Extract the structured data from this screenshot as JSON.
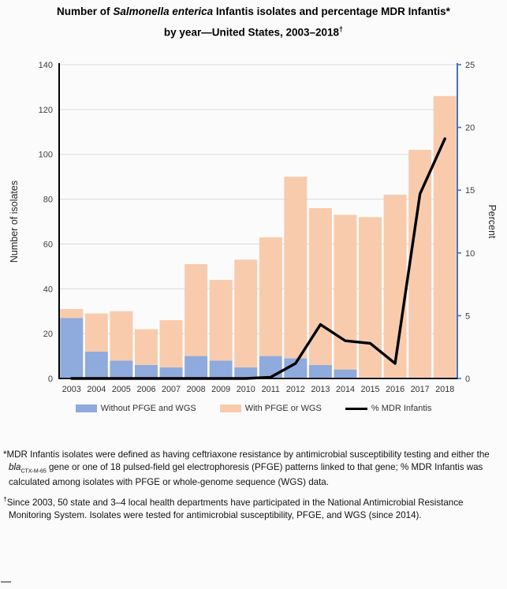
{
  "title": {
    "line1_prefix": "Number of ",
    "line1_italic": "Salmonella enterica",
    "line1_suffix": " Infantis isolates and percentage MDR Infantis*",
    "line2_text": "by year—United States, 2003–2018",
    "line2_sup": "†"
  },
  "legend": [
    {
      "label": "Without PFGE and WGS",
      "color": "#8faadc",
      "type": "swatch"
    },
    {
      "label": "With PFGE or WGS",
      "color": "#f8cbad",
      "type": "swatch"
    },
    {
      "label": "% MDR Infantis",
      "color": "#000000",
      "type": "line"
    }
  ],
  "footnotes": {
    "fn1": {
      "part1": "*MDR Infantis isolates were defined as having ceftriaxone resistance by antimicrobial susceptibility testing and either the ",
      "gene_italic": "bla",
      "gene_sub": "CTX-M-65",
      "part2": " gene or one of 18 pulsed-field gel electrophoresis (PFGE) patterns linked to that gene; % MDR Infantis was calculated among isolates with PFGE or whole-genome sequence (WGS) data."
    },
    "fn2": {
      "marker": "†",
      "text": "Since 2003, 50 state and 3–4 local health departments have participated in the National Antimicrobial Resistance Monitoring System. Isolates were tested for antimicrobial susceptibility, PFGE, and WGS (since 2014)."
    }
  },
  "chart_data": {
    "type": "bar",
    "stacked": true,
    "overlay_line": true,
    "categories": [
      "2003",
      "2004",
      "2005",
      "2006",
      "2007",
      "2008",
      "2009",
      "2010",
      "2011",
      "2012",
      "2013",
      "2014",
      "2015",
      "2016",
      "2017",
      "2018"
    ],
    "series": [
      {
        "name": "Without PFGE and WGS",
        "kind": "bar",
        "color": "#8faadc",
        "values": [
          27,
          12,
          8,
          6,
          5,
          10,
          8,
          5,
          10,
          9,
          6,
          4,
          0,
          0,
          0,
          0
        ]
      },
      {
        "name": "With PFGE or WGS",
        "kind": "bar",
        "color": "#f8cbad",
        "values": [
          4,
          17,
          22,
          16,
          21,
          41,
          36,
          48,
          53,
          81,
          70,
          69,
          72,
          82,
          102,
          126
        ]
      },
      {
        "name": "% MDR Infantis",
        "kind": "line",
        "axis": "right",
        "color": "#000000",
        "values": [
          0,
          0,
          0,
          0,
          0,
          0,
          0,
          0,
          0.1,
          1.2,
          4.3,
          3.0,
          2.8,
          1.2,
          14.7,
          19.1
        ]
      }
    ],
    "stacked_totals": [
      31,
      29,
      30,
      22,
      26,
      51,
      44,
      53,
      63,
      90,
      76,
      73,
      72,
      82,
      102,
      126
    ],
    "left_axis": {
      "label": "Number of isolates",
      "min": 0,
      "max": 140,
      "step": 20,
      "color": "#000000"
    },
    "right_axis": {
      "label": "Percent",
      "min": 0,
      "max": 25,
      "step": 5,
      "color": "#4472c4"
    },
    "grid": true,
    "gridline_color": "#d9d9d9",
    "tick_label_color": "#404040",
    "legend_position": "bottom"
  }
}
